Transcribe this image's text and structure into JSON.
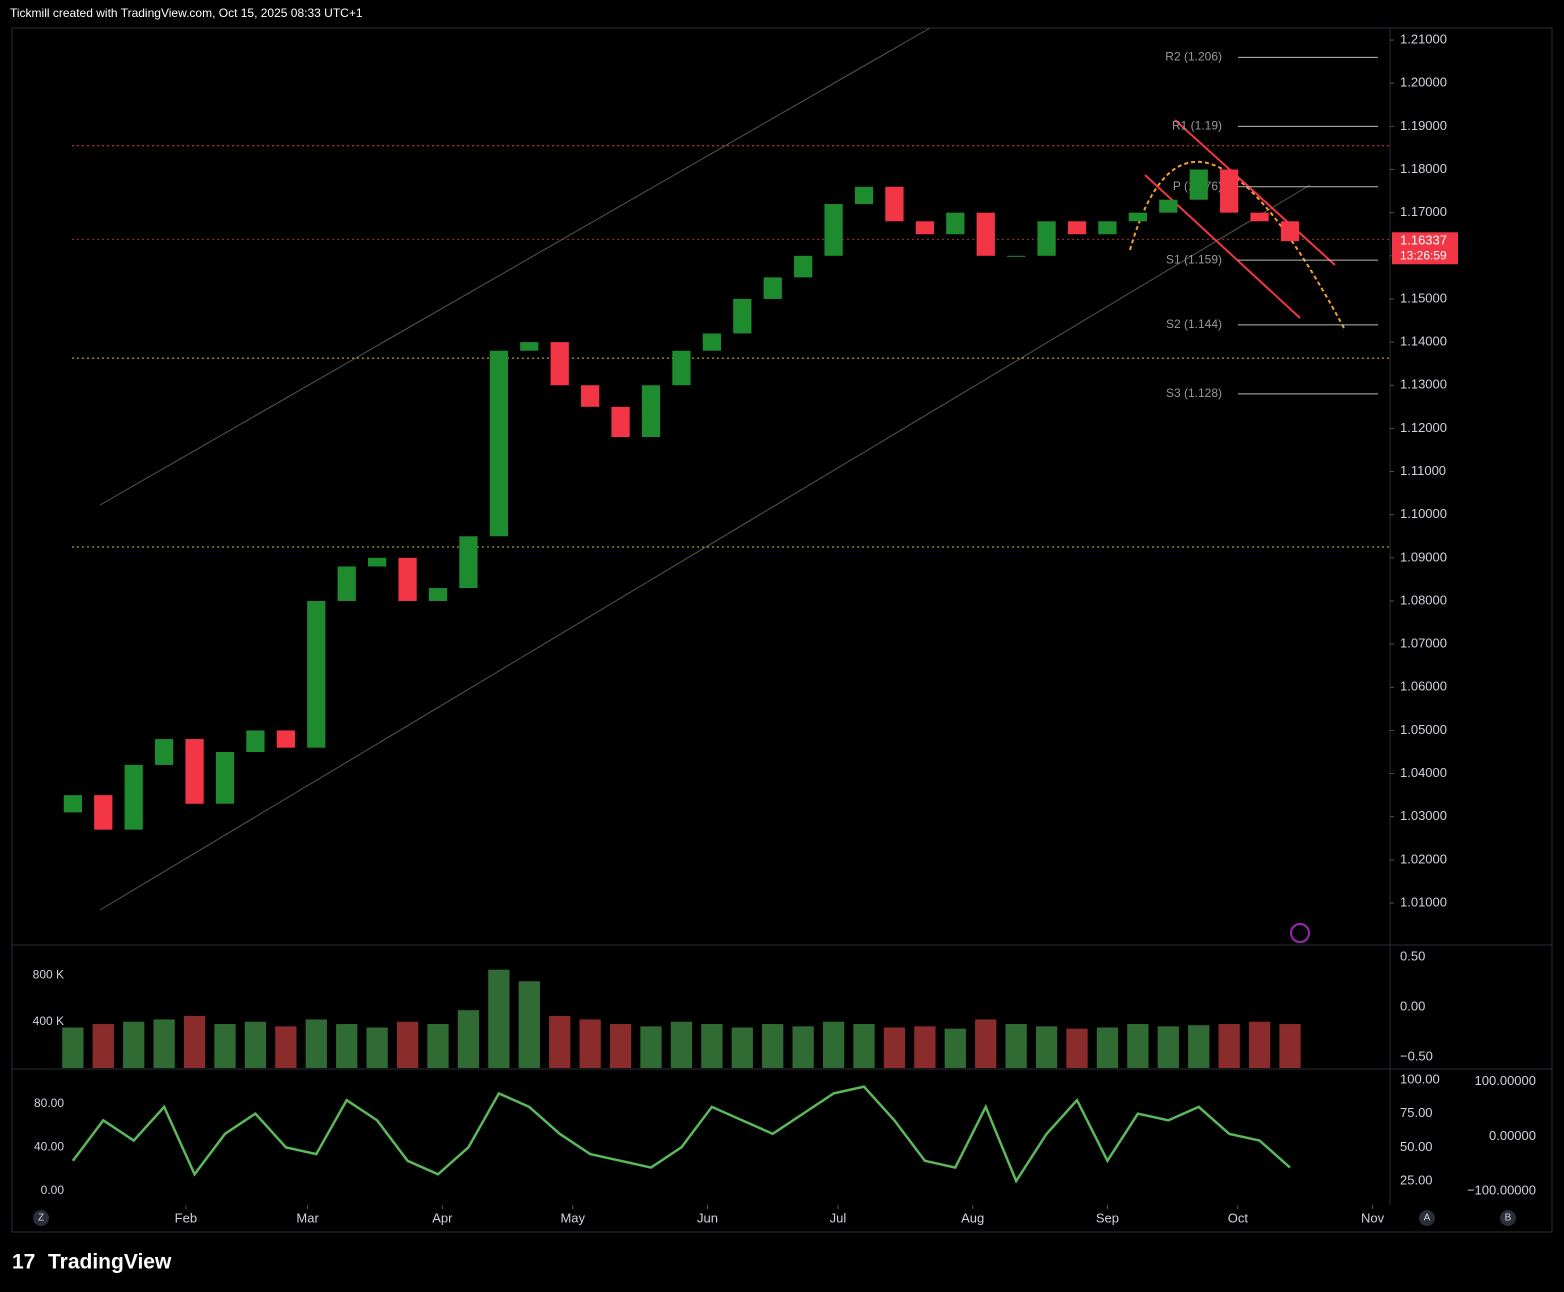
{
  "header": {
    "title": "Tickmill created with TradingView.com, Oct 15, 2025 08:33 UTC+1"
  },
  "footer": {
    "brand": "TradingView"
  },
  "buttons": [
    "Z",
    "A",
    "B"
  ],
  "chart_data": [
    {
      "type": "candlestick",
      "x": [
        6,
        13,
        20,
        27,
        34,
        41,
        48,
        55,
        62,
        69,
        76,
        83,
        90,
        97,
        104,
        111,
        118,
        125,
        132,
        139,
        146,
        153,
        160,
        167,
        174,
        181,
        188,
        195,
        202,
        209,
        216,
        223,
        230,
        237,
        244,
        251,
        258,
        265,
        272,
        279,
        286
      ],
      "open": [
        1.031,
        1.035,
        1.027,
        1.042,
        1.048,
        1.033,
        1.045,
        1.05,
        1.046,
        1.08,
        1.088,
        1.09,
        1.08,
        1.083,
        1.095,
        1.138,
        1.14,
        1.13,
        1.125,
        1.118,
        1.13,
        1.138,
        1.142,
        1.15,
        1.155,
        1.16,
        1.172,
        1.176,
        1.168,
        1.165,
        1.17,
        1.16,
        1.16,
        1.168,
        1.165,
        1.168,
        1.17,
        1.173,
        1.18,
        1.17,
        1.168
      ],
      "close": [
        1.035,
        1.027,
        1.042,
        1.048,
        1.033,
        1.045,
        1.05,
        1.046,
        1.08,
        1.088,
        1.09,
        1.08,
        1.083,
        1.095,
        1.138,
        1.14,
        1.13,
        1.125,
        1.118,
        1.13,
        1.138,
        1.142,
        1.15,
        1.155,
        1.16,
        1.172,
        1.176,
        1.168,
        1.165,
        1.17,
        1.16,
        1.16,
        1.168,
        1.165,
        1.168,
        1.17,
        1.173,
        1.18,
        1.17,
        1.168,
        1.1634
      ],
      "up_color": "#1e8c2e",
      "down_color": "#f23645",
      "xlim": [
        -8,
        309
      ],
      "xticks": [
        {
          "value": 32,
          "label": "Feb"
        },
        {
          "value": 60,
          "label": "Mar"
        },
        {
          "value": 91,
          "label": "Apr"
        },
        {
          "value": 121,
          "label": "May"
        },
        {
          "value": 152,
          "label": "Jun"
        },
        {
          "value": 182,
          "label": "Jul"
        },
        {
          "value": 213,
          "label": "Aug"
        },
        {
          "value": 244,
          "label": "Sep"
        },
        {
          "value": 274,
          "label": "Oct"
        },
        {
          "value": 305,
          "label": "Nov"
        }
      ],
      "ylim": [
        1.0005,
        1.2128
      ],
      "yticks": [
        {
          "value": 1.01,
          "label": "1.01000"
        },
        {
          "value": 1.02,
          "label": "1.02000"
        },
        {
          "value": 1.03,
          "label": "1.03000"
        },
        {
          "value": 1.04,
          "label": "1.04000"
        },
        {
          "value": 1.05,
          "label": "1.05000"
        },
        {
          "value": 1.06,
          "label": "1.06000"
        },
        {
          "value": 1.07,
          "label": "1.07000"
        },
        {
          "value": 1.08,
          "label": "1.08000"
        },
        {
          "value": 1.09,
          "label": "1.09000"
        },
        {
          "value": 1.1,
          "label": "1.10000"
        },
        {
          "value": 1.11,
          "label": "1.11000"
        },
        {
          "value": 1.12,
          "label": "1.12000"
        },
        {
          "value": 1.13,
          "label": "1.13000"
        },
        {
          "value": 1.14,
          "label": "1.14000"
        },
        {
          "value": 1.15,
          "label": "1.15000"
        },
        {
          "value": 1.16,
          "label": "1.16000"
        },
        {
          "value": 1.17,
          "label": "1.17000"
        },
        {
          "value": 1.18,
          "label": "1.18000"
        },
        {
          "value": 1.19,
          "label": "1.19000"
        },
        {
          "value": 1.2,
          "label": "1.20000"
        },
        {
          "value": 1.21,
          "label": "1.21000"
        }
      ],
      "pivots": [
        {
          "label": "R2 (1.206)",
          "value": 1.206
        },
        {
          "label": "R1 (1.19)",
          "value": 1.19
        },
        {
          "label": "P (1.176)",
          "value": 1.176
        },
        {
          "label": "S1 (1.159)",
          "value": 1.159
        },
        {
          "label": "S2 (1.144)",
          "value": 1.144
        },
        {
          "label": "S3 (1.128)",
          "value": 1.128
        }
      ],
      "levels": [
        {
          "value": 1.1855,
          "color": "#f23645"
        },
        {
          "value": 1.1638,
          "color": "#a33"
        },
        {
          "value": 1.1363,
          "color": "#e6c619"
        },
        {
          "value": 1.0925,
          "color": "#b5c92a"
        }
      ],
      "last_price": {
        "value": 1.16337,
        "label": "1.16337"
      },
      "countdown": "13:26:59"
    },
    {
      "type": "bar",
      "x": [
        6,
        13,
        20,
        27,
        34,
        41,
        48,
        55,
        62,
        69,
        76,
        83,
        90,
        97,
        104,
        111,
        118,
        125,
        132,
        139,
        146,
        153,
        160,
        167,
        174,
        181,
        188,
        195,
        202,
        209,
        216,
        223,
        230,
        237,
        244,
        251,
        258,
        265,
        272,
        279,
        286
      ],
      "values": [
        350000,
        380000,
        400000,
        420000,
        450000,
        380000,
        400000,
        360000,
        420000,
        380000,
        350000,
        400000,
        380000,
        500000,
        850000,
        750000,
        450000,
        420000,
        380000,
        360000,
        400000,
        380000,
        350000,
        380000,
        360000,
        400000,
        380000,
        350000,
        360000,
        340000,
        420000,
        380000,
        360000,
        340000,
        350000,
        380000,
        360000,
        370000,
        380000,
        400000,
        380000
      ],
      "up_color": "#2f6b32",
      "down_color": "#8b2c2c",
      "ylim": [
        0,
        1020000
      ],
      "yticks": [
        {
          "value": 400000,
          "label": "400 K"
        },
        {
          "value": 800000,
          "label": "800 K"
        }
      ],
      "y2lim": [
        -0.61,
        0.57
      ],
      "y2ticks": [
        {
          "value": 0.5,
          "label": "0.50"
        },
        {
          "value": 0,
          "label": "0.00"
        },
        {
          "value": -0.5,
          "label": "−0.50"
        }
      ]
    },
    {
      "type": "line",
      "x": [
        6,
        13,
        20,
        27,
        34,
        41,
        48,
        55,
        62,
        69,
        76,
        83,
        90,
        97,
        104,
        111,
        118,
        125,
        132,
        139,
        146,
        153,
        160,
        167,
        174,
        181,
        188,
        195,
        202,
        209,
        216,
        223,
        230,
        237,
        244,
        251,
        258,
        265,
        272,
        279,
        286
      ],
      "series": [
        {
          "color": "#5cb85c",
          "axis": "y2",
          "values": [
            40,
            70,
            55,
            80,
            30,
            60,
            75,
            50,
            45,
            85,
            70,
            40,
            30,
            50,
            90,
            80,
            60,
            45,
            40,
            35,
            50,
            80,
            70,
            60,
            75,
            90,
            95,
            70,
            40,
            35,
            80,
            25,
            60,
            85,
            40,
            75,
            70,
            80,
            60,
            55,
            35
          ]
        }
      ],
      "ylim": [
        -12.9,
        109.4
      ],
      "yticks": [
        {
          "value": 0,
          "label": "0.00"
        },
        {
          "value": 40,
          "label": "40.00"
        },
        {
          "value": 80,
          "label": "80.00"
        }
      ],
      "y2lim": [
        7.2,
        105.9
      ],
      "y2ticks": [
        {
          "value": 100,
          "label": "100.00"
        },
        {
          "value": 75,
          "label": "75.00"
        },
        {
          "value": 50,
          "label": "50.00"
        },
        {
          "value": 25,
          "label": "25.00"
        }
      ],
      "y3lim": [
        -126,
        118
      ],
      "y3ticks": [
        {
          "value": 100,
          "label": "100.00000"
        },
        {
          "value": 0,
          "label": "0.00000"
        },
        {
          "value": -100,
          "label": "−100.00000"
        }
      ]
    }
  ]
}
